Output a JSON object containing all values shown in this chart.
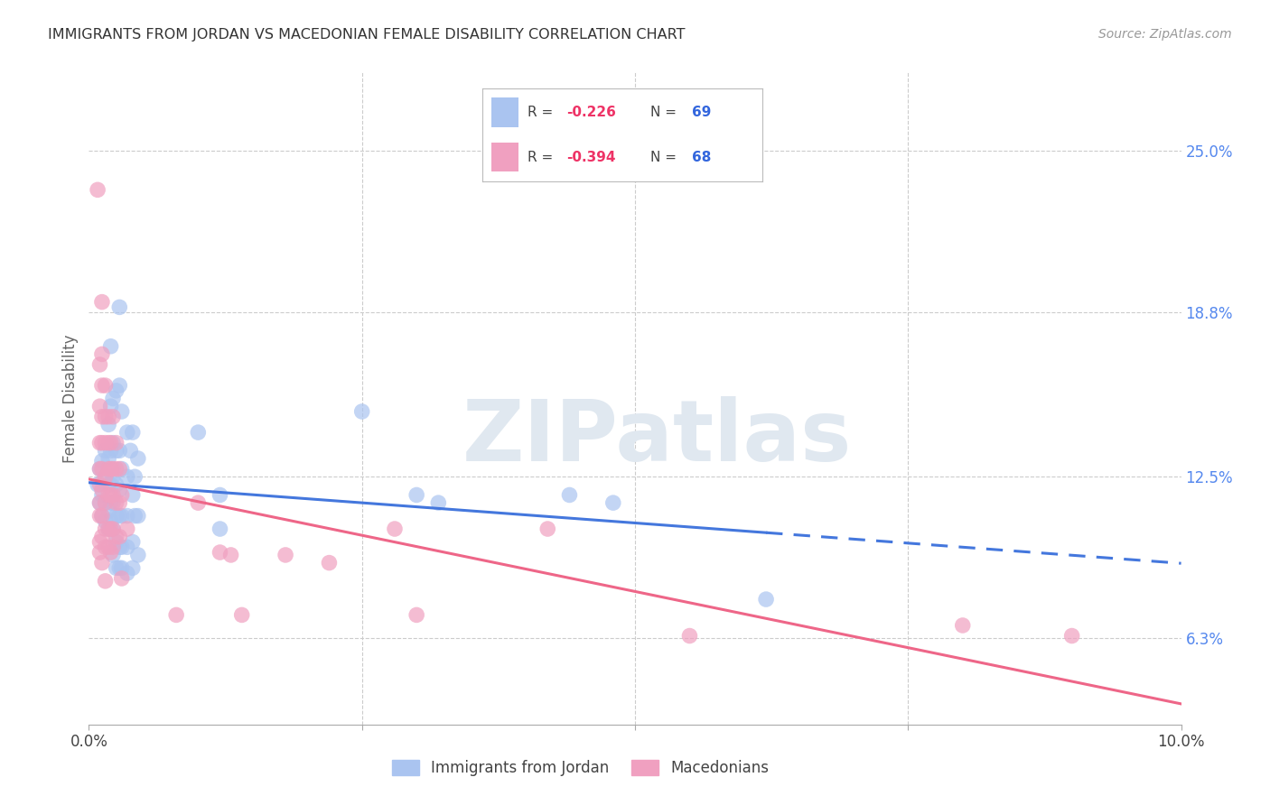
{
  "title": "IMMIGRANTS FROM JORDAN VS MACEDONIAN FEMALE DISABILITY CORRELATION CHART",
  "source": "Source: ZipAtlas.com",
  "ylabel": "Female Disability",
  "ylabel_right_ticks": [
    "25.0%",
    "18.8%",
    "12.5%",
    "6.3%"
  ],
  "ylabel_right_vals": [
    0.25,
    0.188,
    0.125,
    0.063
  ],
  "legend_blue_label": "Immigrants from Jordan",
  "legend_pink_label": "Macedonians",
  "xlim": [
    0.0,
    0.1
  ],
  "ylim": [
    0.03,
    0.28
  ],
  "blue_color": "#aac4f0",
  "pink_color": "#f0a0c0",
  "blue_line_color": "#4477dd",
  "pink_line_color": "#ee6688",
  "blue_scatter": [
    [
      0.0008,
      0.122
    ],
    [
      0.001,
      0.128
    ],
    [
      0.001,
      0.115
    ],
    [
      0.0012,
      0.131
    ],
    [
      0.0012,
      0.118
    ],
    [
      0.0012,
      0.11
    ],
    [
      0.0015,
      0.135
    ],
    [
      0.0015,
      0.125
    ],
    [
      0.0015,
      0.115
    ],
    [
      0.0015,
      0.108
    ],
    [
      0.0018,
      0.145
    ],
    [
      0.0018,
      0.132
    ],
    [
      0.0018,
      0.122
    ],
    [
      0.0018,
      0.112
    ],
    [
      0.0018,
      0.105
    ],
    [
      0.002,
      0.175
    ],
    [
      0.002,
      0.152
    ],
    [
      0.002,
      0.135
    ],
    [
      0.002,
      0.122
    ],
    [
      0.002,
      0.115
    ],
    [
      0.002,
      0.108
    ],
    [
      0.0022,
      0.155
    ],
    [
      0.0022,
      0.138
    ],
    [
      0.0022,
      0.125
    ],
    [
      0.0022,
      0.115
    ],
    [
      0.0022,
      0.105
    ],
    [
      0.0022,
      0.095
    ],
    [
      0.0025,
      0.158
    ],
    [
      0.0025,
      0.135
    ],
    [
      0.0025,
      0.122
    ],
    [
      0.0025,
      0.11
    ],
    [
      0.0025,
      0.1
    ],
    [
      0.0025,
      0.09
    ],
    [
      0.0028,
      0.19
    ],
    [
      0.0028,
      0.16
    ],
    [
      0.0028,
      0.135
    ],
    [
      0.0028,
      0.12
    ],
    [
      0.0028,
      0.11
    ],
    [
      0.0028,
      0.098
    ],
    [
      0.0028,
      0.09
    ],
    [
      0.003,
      0.15
    ],
    [
      0.003,
      0.128
    ],
    [
      0.003,
      0.11
    ],
    [
      0.003,
      0.098
    ],
    [
      0.003,
      0.09
    ],
    [
      0.0035,
      0.142
    ],
    [
      0.0035,
      0.125
    ],
    [
      0.0035,
      0.11
    ],
    [
      0.0035,
      0.098
    ],
    [
      0.0035,
      0.088
    ],
    [
      0.0038,
      0.135
    ],
    [
      0.004,
      0.142
    ],
    [
      0.004,
      0.118
    ],
    [
      0.004,
      0.1
    ],
    [
      0.004,
      0.09
    ],
    [
      0.0042,
      0.125
    ],
    [
      0.0042,
      0.11
    ],
    [
      0.0045,
      0.132
    ],
    [
      0.0045,
      0.11
    ],
    [
      0.0045,
      0.095
    ],
    [
      0.01,
      0.142
    ],
    [
      0.012,
      0.118
    ],
    [
      0.012,
      0.105
    ],
    [
      0.025,
      0.15
    ],
    [
      0.03,
      0.118
    ],
    [
      0.032,
      0.115
    ],
    [
      0.044,
      0.118
    ],
    [
      0.048,
      0.115
    ],
    [
      0.062,
      0.078
    ]
  ],
  "pink_scatter": [
    [
      0.0008,
      0.235
    ],
    [
      0.001,
      0.168
    ],
    [
      0.001,
      0.152
    ],
    [
      0.001,
      0.138
    ],
    [
      0.001,
      0.128
    ],
    [
      0.001,
      0.122
    ],
    [
      0.001,
      0.115
    ],
    [
      0.001,
      0.11
    ],
    [
      0.001,
      0.1
    ],
    [
      0.001,
      0.096
    ],
    [
      0.0012,
      0.192
    ],
    [
      0.0012,
      0.172
    ],
    [
      0.0012,
      0.16
    ],
    [
      0.0012,
      0.148
    ],
    [
      0.0012,
      0.138
    ],
    [
      0.0012,
      0.128
    ],
    [
      0.0012,
      0.12
    ],
    [
      0.0012,
      0.11
    ],
    [
      0.0012,
      0.102
    ],
    [
      0.0012,
      0.092
    ],
    [
      0.0015,
      0.16
    ],
    [
      0.0015,
      0.148
    ],
    [
      0.0015,
      0.138
    ],
    [
      0.0015,
      0.125
    ],
    [
      0.0015,
      0.115
    ],
    [
      0.0015,
      0.105
    ],
    [
      0.0015,
      0.098
    ],
    [
      0.0015,
      0.085
    ],
    [
      0.0018,
      0.148
    ],
    [
      0.0018,
      0.138
    ],
    [
      0.0018,
      0.128
    ],
    [
      0.0018,
      0.118
    ],
    [
      0.0018,
      0.105
    ],
    [
      0.0018,
      0.098
    ],
    [
      0.002,
      0.138
    ],
    [
      0.002,
      0.128
    ],
    [
      0.002,
      0.118
    ],
    [
      0.002,
      0.105
    ],
    [
      0.002,
      0.096
    ],
    [
      0.0022,
      0.148
    ],
    [
      0.0022,
      0.128
    ],
    [
      0.0022,
      0.118
    ],
    [
      0.0022,
      0.105
    ],
    [
      0.0022,
      0.098
    ],
    [
      0.0025,
      0.138
    ],
    [
      0.0025,
      0.128
    ],
    [
      0.0025,
      0.115
    ],
    [
      0.0025,
      0.102
    ],
    [
      0.0028,
      0.128
    ],
    [
      0.0028,
      0.115
    ],
    [
      0.0028,
      0.102
    ],
    [
      0.003,
      0.118
    ],
    [
      0.003,
      0.086
    ],
    [
      0.0035,
      0.105
    ],
    [
      0.008,
      0.072
    ],
    [
      0.01,
      0.115
    ],
    [
      0.012,
      0.096
    ],
    [
      0.013,
      0.095
    ],
    [
      0.014,
      0.072
    ],
    [
      0.018,
      0.095
    ],
    [
      0.022,
      0.092
    ],
    [
      0.028,
      0.105
    ],
    [
      0.03,
      0.072
    ],
    [
      0.042,
      0.105
    ],
    [
      0.055,
      0.064
    ],
    [
      0.08,
      0.068
    ],
    [
      0.09,
      0.064
    ]
  ],
  "background_color": "#ffffff",
  "grid_color": "#cccccc",
  "watermark": "ZIPatlas"
}
